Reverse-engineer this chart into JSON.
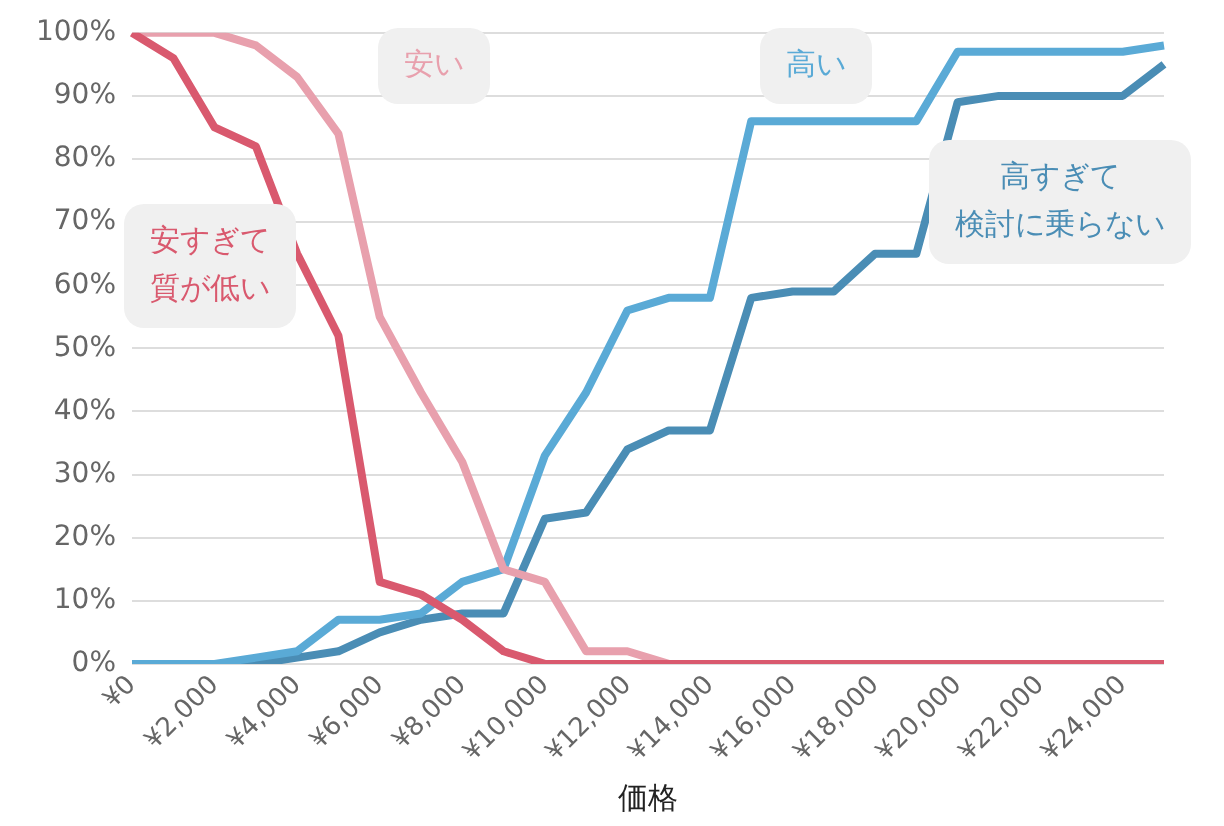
{
  "chart_data": {
    "type": "line",
    "xlabel": "価格",
    "categories": [
      "¥0",
      null,
      "¥2,000",
      null,
      "¥4,000",
      null,
      "¥6,000",
      null,
      "¥8,000",
      null,
      "¥10,000",
      null,
      "¥12,000",
      null,
      "¥14,000",
      null,
      "¥16,000",
      null,
      "¥18,000",
      null,
      "¥20,000",
      null,
      "¥22,000",
      null,
      "¥24,000",
      null
    ],
    "series": [
      {
        "name": "安すぎて質が低い",
        "color": "#d9596e",
        "values": [
          100,
          96,
          85,
          82,
          65,
          52,
          13,
          11,
          7,
          2,
          0,
          0,
          0,
          0,
          0,
          0,
          0,
          0,
          0,
          0,
          0,
          0,
          0,
          0,
          0,
          0
        ]
      },
      {
        "name": "安い",
        "color": "#e8a0ad",
        "values": [
          100,
          100,
          100,
          98,
          93,
          84,
          55,
          43,
          32,
          15,
          13,
          2,
          2,
          0,
          0,
          0,
          0,
          0,
          0,
          0,
          0,
          0,
          0,
          0,
          0,
          0
        ]
      },
      {
        "name": "高い",
        "color": "#5aaad6",
        "values": [
          0,
          0,
          0,
          1,
          2,
          7,
          7,
          8,
          13,
          15,
          33,
          43,
          56,
          58,
          58,
          86,
          86,
          86,
          86,
          86,
          97,
          97,
          97,
          97,
          97,
          98
        ]
      },
      {
        "name": "高すぎて検討に乗らない",
        "color": "#4a8db5",
        "values": [
          0,
          0,
          0,
          0,
          1,
          2,
          5,
          7,
          8,
          8,
          23,
          24,
          34,
          37,
          37,
          58,
          59,
          59,
          65,
          65,
          89,
          90,
          90,
          90,
          90,
          95
        ]
      }
    ],
    "ylim": [
      0,
      100
    ],
    "yticks": [
      {
        "value": 0,
        "label": "0%"
      },
      {
        "value": 10,
        "label": "10%"
      },
      {
        "value": 20,
        "label": "20%"
      },
      {
        "value": 30,
        "label": "30%"
      },
      {
        "value": 40,
        "label": "40%"
      },
      {
        "value": 50,
        "label": "50%"
      },
      {
        "value": 60,
        "label": "60%"
      },
      {
        "value": 70,
        "label": "70%"
      },
      {
        "value": 80,
        "label": "80%"
      },
      {
        "value": 90,
        "label": "90%"
      },
      {
        "value": 100,
        "label": "100%"
      }
    ],
    "grid": "y",
    "legend": false,
    "marker": "none",
    "line_style": "solid"
  }
}
